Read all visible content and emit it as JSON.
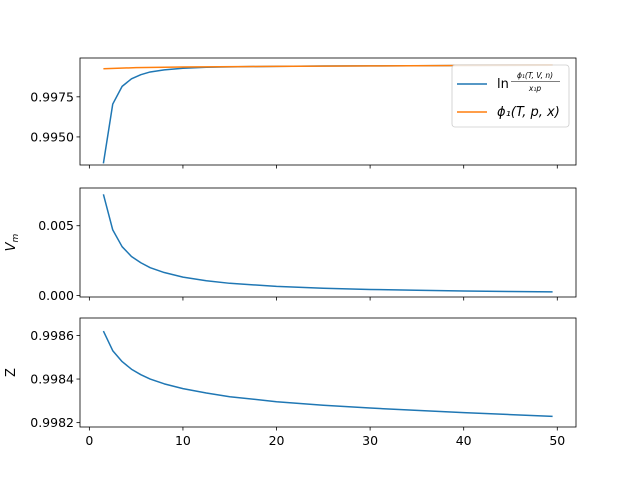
{
  "chart_data": [
    {
      "type": "line",
      "ylabel": "",
      "ylim": [
        0.99325,
        0.99992
      ],
      "yticks": [
        0.995,
        0.9975
      ],
      "ytick_labels": [
        "0.9950",
        "0.9975"
      ],
      "xlim": [
        -1.0,
        52.0
      ],
      "xticks": [
        0,
        10,
        20,
        30,
        40,
        50
      ],
      "show_xtick_labels": false,
      "legend": {
        "placement": "top-right",
        "entries": [
          "ln(φ1(T,V,n)/(x1 p))",
          "φ1(T,p,x)"
        ]
      },
      "series": [
        {
          "name": "ln(φ1(T,V,n)/(x1 p))",
          "color": "#1f77b4",
          "x": [
            1.5,
            2.5,
            3.5,
            4.5,
            5.5,
            6.5,
            8,
            10,
            12.5,
            15,
            20,
            25,
            30,
            35,
            40,
            45,
            49.5
          ],
          "y": [
            0.99335,
            0.99705,
            0.99815,
            0.99862,
            0.99888,
            0.99905,
            0.99918,
            0.99928,
            0.99934,
            0.99937,
            0.9994,
            0.99942,
            0.99943,
            0.99944,
            0.99945,
            0.99946,
            0.99947
          ]
        },
        {
          "name": "φ1(T,p,x)",
          "color": "#ff7f0e",
          "x": [
            1.5,
            5,
            10,
            20,
            30,
            40,
            49.5
          ],
          "y": [
            0.99925,
            0.99932,
            0.99936,
            0.9994,
            0.99943,
            0.99945,
            0.99947
          ]
        }
      ]
    },
    {
      "type": "line",
      "ylabel": "V_m",
      "ylim": [
        -0.0001,
        0.0077
      ],
      "yticks": [
        0.0,
        0.005
      ],
      "ytick_labels": [
        "0.000",
        "0.005"
      ],
      "xlim": [
        -1.0,
        52.0
      ],
      "xticks": [
        0,
        10,
        20,
        30,
        40,
        50
      ],
      "show_xtick_labels": false,
      "series": [
        {
          "name": "",
          "color": "#1f77b4",
          "x": [
            1.5,
            2.5,
            3.5,
            4.5,
            5.5,
            6.5,
            8,
            10,
            12.5,
            15,
            20,
            25,
            30,
            35,
            40,
            45,
            49.5
          ],
          "y": [
            0.00725,
            0.0047,
            0.0035,
            0.0028,
            0.00235,
            0.002,
            0.00165,
            0.00132,
            0.00106,
            0.00088,
            0.00066,
            0.00053,
            0.00044,
            0.00038,
            0.00033,
            0.00029,
            0.00027
          ]
        }
      ]
    },
    {
      "type": "line",
      "ylabel": "Z",
      "ylim": [
        0.99818,
        0.99868
      ],
      "yticks": [
        0.9982,
        0.9984,
        0.9986
      ],
      "ytick_labels": [
        "0.9982",
        "0.9984",
        "0.9986"
      ],
      "xlim": [
        -1.0,
        52.0
      ],
      "xticks": [
        0,
        10,
        20,
        30,
        40,
        50
      ],
      "xtick_labels": [
        "0",
        "10",
        "20",
        "30",
        "40",
        "50"
      ],
      "show_xtick_labels": true,
      "series": [
        {
          "name": "",
          "color": "#1f77b4",
          "x": [
            1.5,
            2.5,
            3.5,
            4.5,
            5.5,
            6.5,
            8,
            10,
            12.5,
            15,
            20,
            25,
            30,
            35,
            40,
            45,
            49.5
          ],
          "y": [
            0.99862,
            0.99853,
            0.99848,
            0.998445,
            0.99842,
            0.9984,
            0.998378,
            0.998356,
            0.998336,
            0.998319,
            0.998296,
            0.99828,
            0.998267,
            0.998256,
            0.998246,
            0.998237,
            0.998229
          ]
        }
      ]
    }
  ]
}
